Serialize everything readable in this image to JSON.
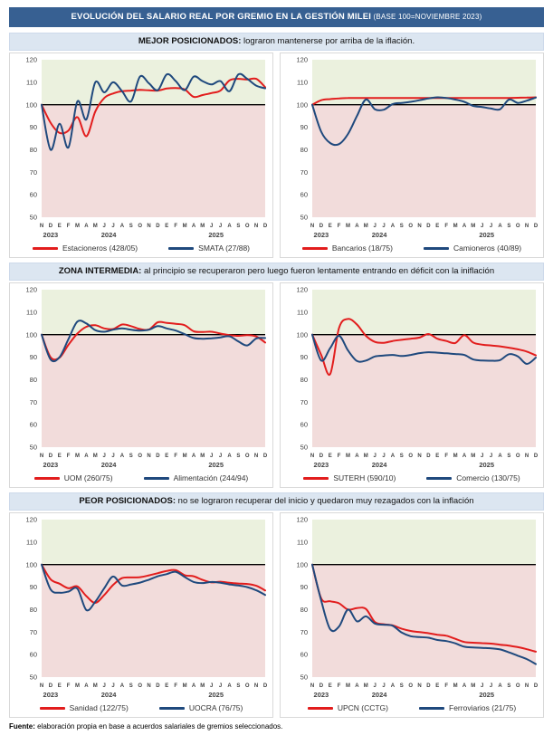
{
  "page": {
    "title_main": "EVOLUCIÓN DEL SALARIO REAL POR GREMIO EN LA GESTIÓN MILEI",
    "title_suffix": " (BASE 100=NOVIEMBRE 2023)",
    "footer_label": "Fuente:",
    "footer_text": " elaboración propia en base a acuerdos salariales de gremios seleccionados."
  },
  "colors": {
    "title_bg": "#376092",
    "section_bg": "#DCE6F1",
    "above_base": "#EBF1DE",
    "below_base": "#F2DCDB",
    "red": "#E21D1D",
    "blue": "#1F497D",
    "baseline": "#000000",
    "axis_text": "#404040"
  },
  "sections": [
    {
      "heading_bold": "MEJOR POSICIONADOS:",
      "heading_rest": " lograron mantenerse por arriba de la iflación."
    },
    {
      "heading_bold": "ZONA INTERMEDIA:",
      "heading_rest": " al principio se recuperaron pero luego fueron lentamente entrando en déficit con la iniflación"
    },
    {
      "heading_bold": "PEOR POSICIONADOS:",
      "heading_rest": " no se lograron recuperar del inicio y quedaron muy rezagados con la inflación"
    }
  ],
  "chart_data": {
    "shared": {
      "type": "line",
      "categories": [
        "N",
        "D",
        "E",
        "F",
        "M",
        "A",
        "M",
        "J",
        "J",
        "A",
        "S",
        "O",
        "N",
        "D",
        "E",
        "F",
        "M",
        "A",
        "M",
        "J",
        "J",
        "A",
        "S",
        "O",
        "N",
        "D"
      ],
      "years": [
        {
          "label": "2023",
          "index": 1
        },
        {
          "label": "2024",
          "index": 7.5
        },
        {
          "label": "2025",
          "index": 19.5
        }
      ],
      "ylim": [
        50,
        120
      ],
      "y_ticks": [
        120,
        110,
        100,
        90,
        80,
        70,
        60,
        50
      ],
      "baseline": 100,
      "grid": false,
      "legend_position": "bottom"
    },
    "charts": [
      {
        "panel": "top-left",
        "series": [
          {
            "name": "Estacioneros (428/05)",
            "color": "red",
            "values": [
              100,
              92,
              87.5,
              88.5,
              94.5,
              86,
              97,
              103,
              105,
              106,
              106.3,
              106.6,
              106.4,
              106.3,
              107.2,
              107.4,
              106.8,
              103.5,
              104.3,
              105.2,
              106.3,
              110.8,
              111.5,
              111.2,
              111.5,
              107.8
            ]
          },
          {
            "name": "SMATA (27/88)",
            "color": "blue",
            "values": [
              100,
              80,
              91.5,
              81,
              101.5,
              93.5,
              110,
              105.5,
              110,
              106,
              101.5,
              112.5,
              109.5,
              106.5,
              113.5,
              110.5,
              106.5,
              112.5,
              110.5,
              109,
              110.5,
              106,
              113.5,
              111.5,
              108.5,
              107.3
            ]
          }
        ]
      },
      {
        "panel": "top-right",
        "series": [
          {
            "name": "Bancarios (18/75)",
            "color": "red",
            "values": [
              100,
              102,
              102.5,
              102.8,
              103,
              103,
              103,
              103,
              103,
              103,
              103,
              103,
              103,
              103,
              103,
              103,
              103,
              103,
              103,
              103,
              103,
              103,
              103,
              103.1,
              103.2,
              103.3
            ]
          },
          {
            "name": "Camioneros (40/89)",
            "color": "blue",
            "values": [
              100,
              88,
              83,
              82.5,
              87,
              95,
              102.3,
              98,
              97.8,
              100.3,
              100.8,
              101.3,
              102,
              102.8,
              103.3,
              103,
              102.3,
              101.3,
              99.5,
              99,
              98.3,
              98,
              102.3,
              100.8,
              101.8,
              103.2
            ]
          }
        ]
      },
      {
        "panel": "middle-left",
        "series": [
          {
            "name": "UOM (260/75)",
            "color": "red",
            "values": [
              100,
              90,
              89.8,
              95.5,
              100.5,
              103.5,
              104.2,
              102.8,
              102.5,
              104.5,
              103.8,
              102.5,
              102.3,
              105.5,
              105.2,
              104.8,
              104.2,
              101.5,
              101.2,
              101.3,
              100.5,
              99.8,
              99.5,
              99.8,
              99.2,
              96.5
            ]
          },
          {
            "name": "Alimentación (244/94)",
            "color": "blue",
            "values": [
              100,
              89,
              90,
              98,
              105.8,
              105,
              102,
              101.3,
              102.2,
              102.8,
              102.2,
              101.8,
              102.2,
              103.8,
              102.8,
              101.8,
              100.2,
              98.5,
              98.2,
              98.4,
              98.8,
              99.3,
              97,
              95.2,
              98.3,
              98.5
            ]
          }
        ]
      },
      {
        "panel": "middle-right",
        "series": [
          {
            "name": "SUTERH (590/10)",
            "color": "red",
            "values": [
              100,
              91,
              82.5,
              103,
              107,
              104.5,
              99.5,
              96.8,
              96.4,
              97.2,
              97.7,
              98.2,
              98.7,
              100.3,
              98.2,
              97.2,
              96.3,
              99.8,
              96.5,
              95.6,
              95.2,
              94.8,
              94.2,
              93.5,
              92.5,
              90.8
            ]
          },
          {
            "name": "Comercio (130/75)",
            "color": "blue",
            "values": [
              100,
              88.5,
              94,
              99.5,
              93,
              88.3,
              88.5,
              90.3,
              90.7,
              91,
              90.5,
              91,
              91.8,
              92.2,
              92,
              91.7,
              91.4,
              91,
              89,
              88.5,
              88.4,
              88.7,
              91.3,
              90.3,
              87,
              89.8
            ]
          }
        ]
      },
      {
        "panel": "bottom-left",
        "series": [
          {
            "name": "Sanidad (122/75)",
            "color": "red",
            "values": [
              100,
              93.5,
              91.5,
              89.5,
              90.3,
              86,
              83,
              86.5,
              91,
              94,
              94.3,
              94.4,
              95.2,
              96.2,
              97.2,
              97.5,
              95.3,
              94.8,
              93.2,
              92.1,
              92.4,
              91.9,
              91.6,
              91.4,
              90.6,
              88.5
            ]
          },
          {
            "name": "UOCRA (76/75)",
            "color": "blue",
            "values": [
              100,
              89,
              87.5,
              88,
              89.3,
              79.8,
              83.5,
              89.5,
              94.7,
              90.7,
              91.2,
              92,
              93.3,
              94.8,
              95.8,
              96.8,
              94.5,
              92.3,
              91.8,
              92.3,
              91.9,
              91.2,
              90.7,
              90,
              88.6,
              86.5
            ]
          }
        ]
      },
      {
        "panel": "bottom-right",
        "series": [
          {
            "name": "UPCN (CCTG)",
            "color": "red",
            "values": [
              100,
              85,
              83.7,
              82.8,
              80,
              80.7,
              80.3,
              74.5,
              73.5,
              73,
              71.5,
              70.5,
              70,
              69.5,
              68.8,
              68.4,
              67,
              65.6,
              65.3,
              65.1,
              64.9,
              64.4,
              64,
              63.3,
              62.4,
              61.3
            ]
          },
          {
            "name": "Ferroviarios (21/75)",
            "color": "blue",
            "values": [
              100,
              84,
              71.3,
              72.5,
              80,
              74.8,
              77,
              73.8,
              73.3,
              72.8,
              69.8,
              68.2,
              67.8,
              67.5,
              66.5,
              66,
              65,
              63.5,
              63.2,
              63,
              62.8,
              62.3,
              61,
              59.5,
              58,
              55.8
            ]
          }
        ]
      }
    ]
  }
}
